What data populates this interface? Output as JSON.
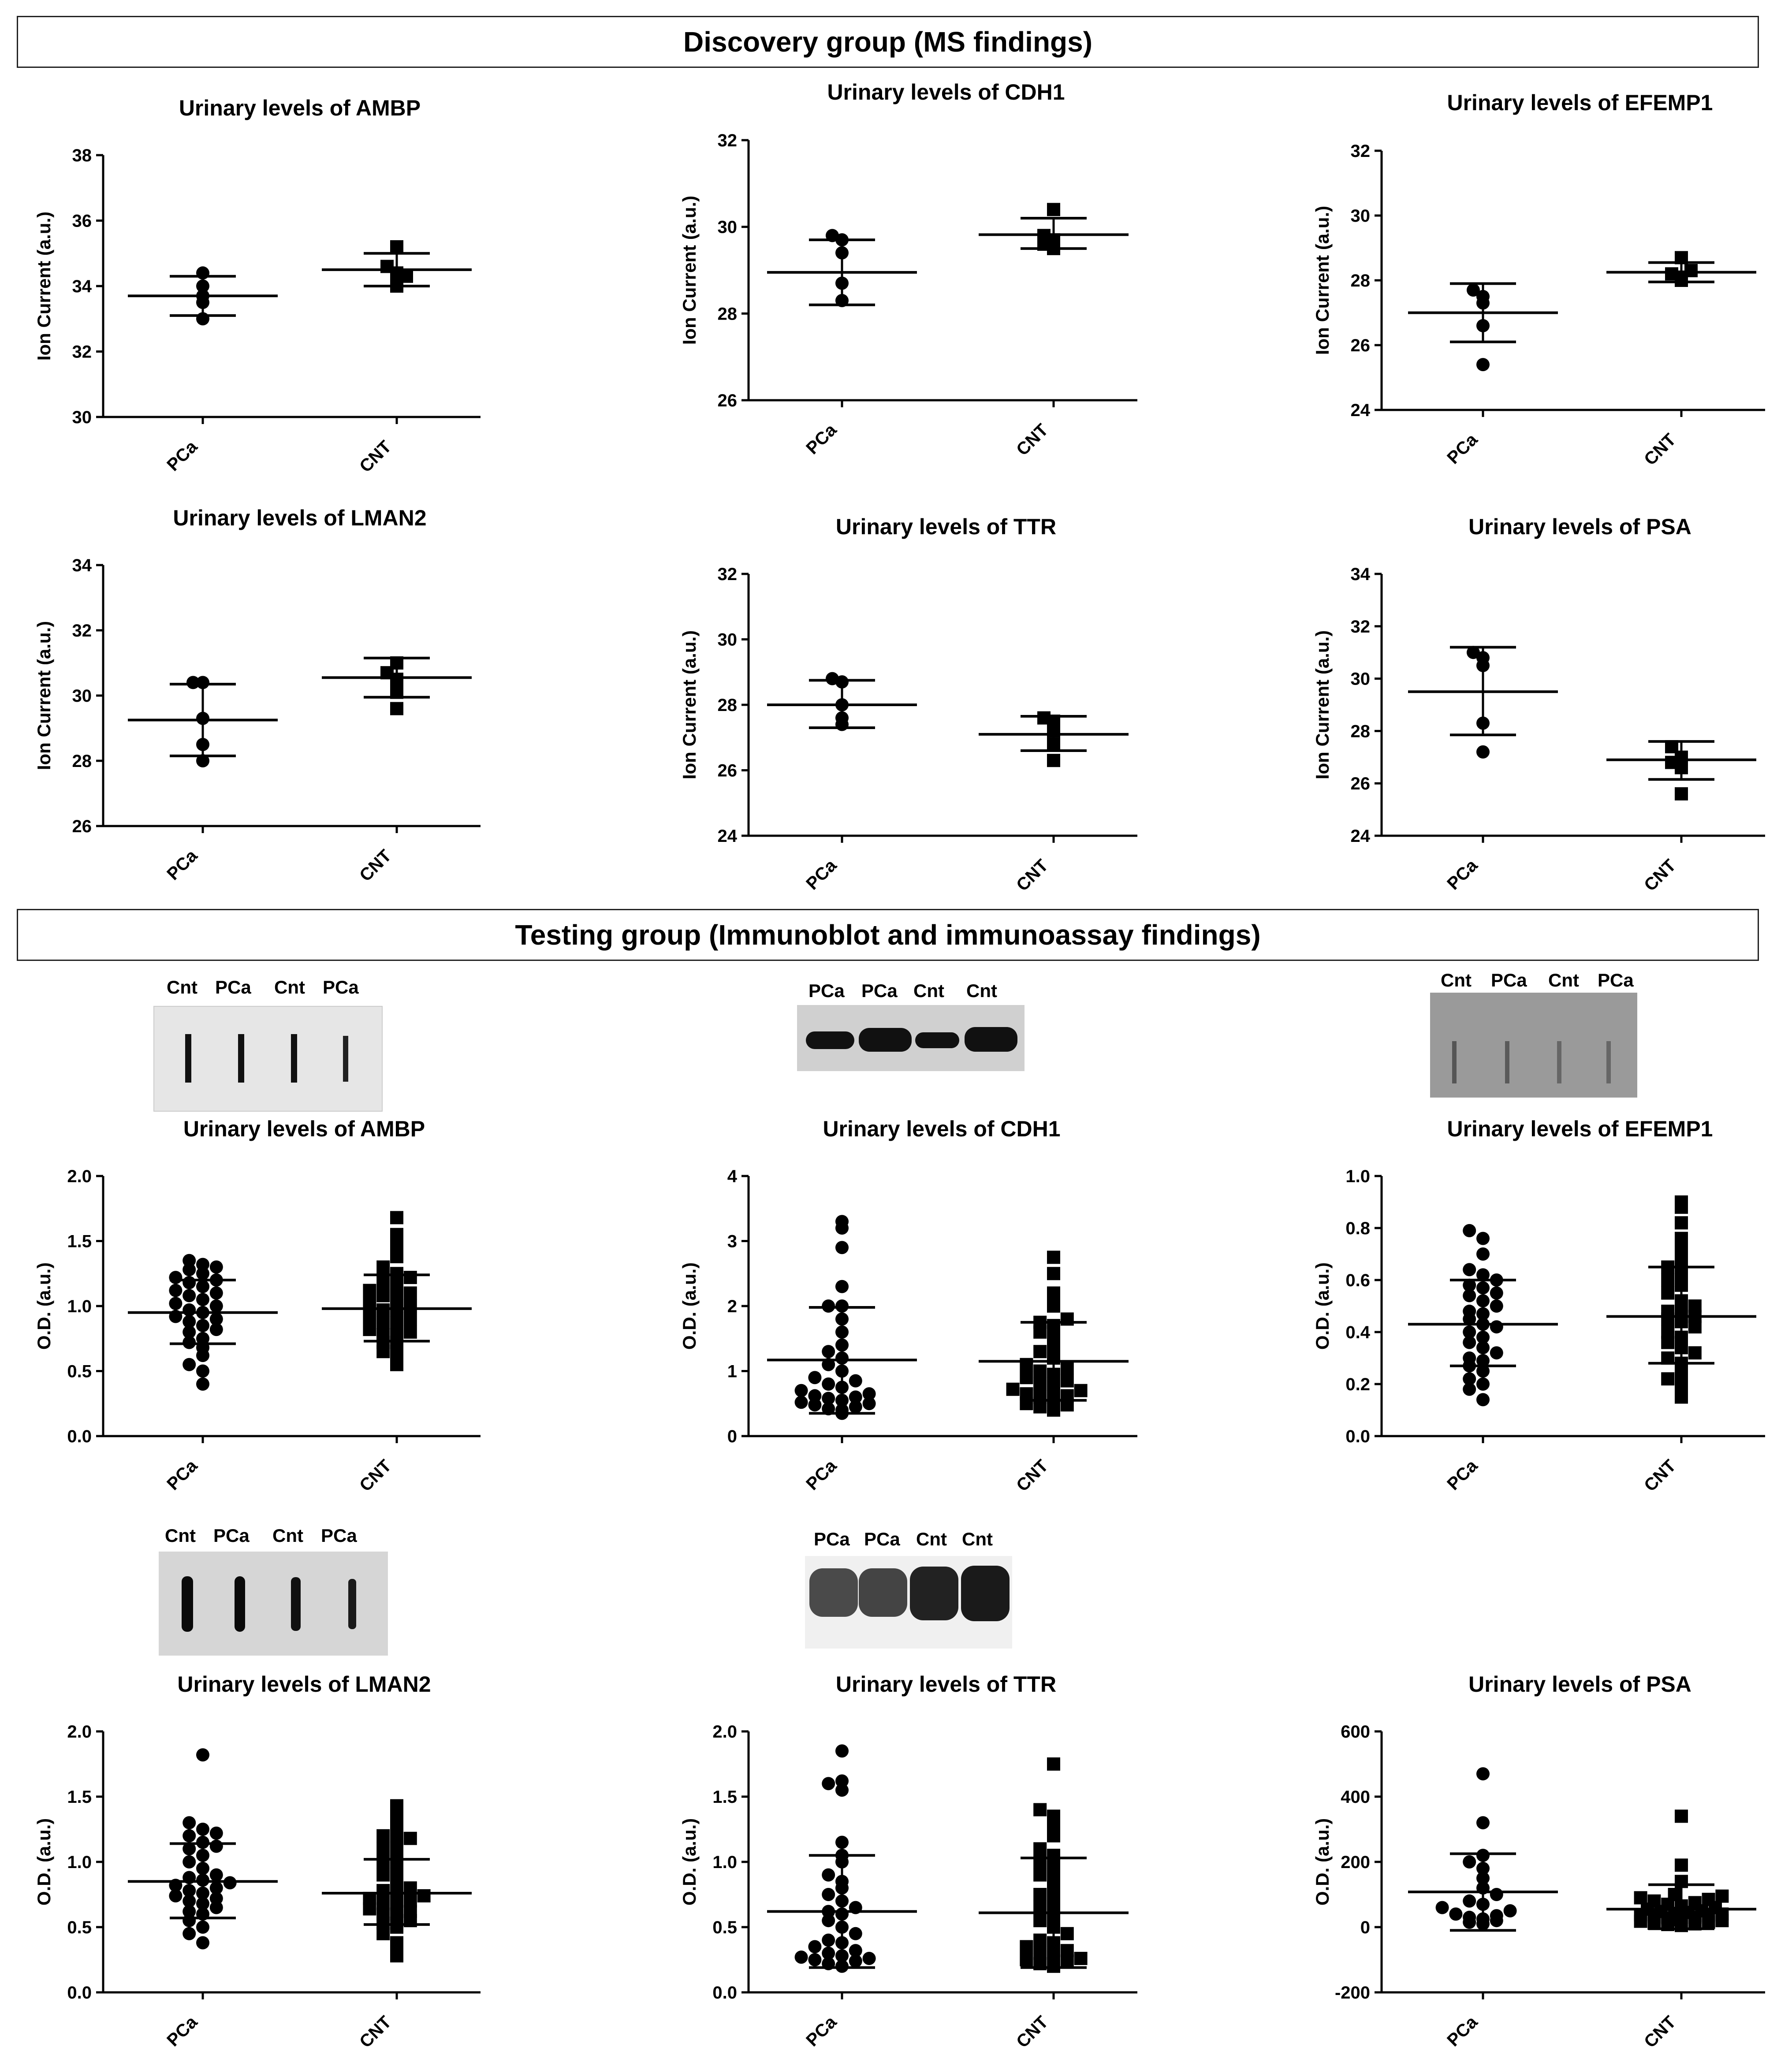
{
  "sections": {
    "discovery": "Discovery group (MS findings)",
    "testing": "Testing group (Immunoblot and immunoassay findings)"
  },
  "blots": {
    "ambp": [
      "Cnt",
      "PCa",
      "Cnt",
      "PCa"
    ],
    "cdh1": [
      "PCa",
      "PCa",
      "Cnt",
      "Cnt"
    ],
    "efemp1": [
      "Cnt",
      "PCa",
      "Cnt",
      "PCa"
    ],
    "lman2": [
      "Cnt",
      "PCa",
      "Cnt",
      "PCa"
    ],
    "ttr": [
      "PCa",
      "PCa",
      "Cnt",
      "Cnt"
    ]
  },
  "colors": {
    "ink": "#000000",
    "frame": "#222222"
  },
  "chart_data": [
    {
      "id": "ms_ambp",
      "type": "scatter",
      "title": "Urinary levels of AMBP",
      "ylabel": "Ion Current (a.u.)",
      "categories": [
        "PCa",
        "CNT"
      ],
      "ylim": [
        30,
        38
      ],
      "yticks": [
        "30",
        "32",
        "34",
        "36",
        "38"
      ],
      "series": [
        {
          "name": "PCa",
          "marker": "circle",
          "mean": 33.7,
          "sd_low": 33.1,
          "sd_high": 34.3,
          "values": [
            33.0,
            33.5,
            34.0,
            33.7,
            34.4
          ]
        },
        {
          "name": "CNT",
          "marker": "square",
          "mean": 34.5,
          "sd_low": 34.0,
          "sd_high": 35.0,
          "values": [
            34.0,
            34.4,
            34.6,
            34.3,
            35.2
          ]
        }
      ]
    },
    {
      "id": "ms_cdh1",
      "type": "scatter",
      "title": "Urinary levels of CDH1",
      "ylabel": "Ion Current (a.u.)",
      "categories": [
        "PCa",
        "CNT"
      ],
      "ylim": [
        26,
        32
      ],
      "yticks": [
        "26",
        "28",
        "30",
        "32"
      ],
      "series": [
        {
          "name": "PCa",
          "marker": "circle",
          "mean": 28.95,
          "sd_low": 28.2,
          "sd_high": 29.7,
          "values": [
            28.3,
            28.7,
            29.4,
            29.7,
            29.8
          ]
        },
        {
          "name": "CNT",
          "marker": "square",
          "mean": 29.82,
          "sd_low": 29.5,
          "sd_high": 30.2,
          "values": [
            29.5,
            29.6,
            29.7,
            29.8,
            30.4
          ]
        }
      ]
    },
    {
      "id": "ms_efemp1",
      "type": "scatter",
      "title": "Urinary levels of EFEMP1",
      "ylabel": "Ion Current (a.u.)",
      "categories": [
        "PCa",
        "CNT"
      ],
      "ylim": [
        24,
        32
      ],
      "yticks": [
        "24",
        "26",
        "28",
        "30",
        "32"
      ],
      "series": [
        {
          "name": "PCa",
          "marker": "circle",
          "mean": 27.0,
          "sd_low": 26.1,
          "sd_high": 27.9,
          "values": [
            25.4,
            26.6,
            27.3,
            27.5,
            27.7
          ]
        },
        {
          "name": "CNT",
          "marker": "square",
          "mean": 28.25,
          "sd_low": 27.95,
          "sd_high": 28.55,
          "values": [
            28.0,
            28.1,
            28.2,
            28.3,
            28.7
          ]
        }
      ]
    },
    {
      "id": "ms_lman2",
      "type": "scatter",
      "title": "Urinary levels of LMAN2",
      "ylabel": "Ion Current (a.u.)",
      "categories": [
        "PCa",
        "CNT"
      ],
      "ylim": [
        26,
        34
      ],
      "yticks": [
        "26",
        "28",
        "30",
        "32",
        "34"
      ],
      "series": [
        {
          "name": "PCa",
          "marker": "circle",
          "mean": 29.25,
          "sd_low": 28.15,
          "sd_high": 30.35,
          "values": [
            28.0,
            28.5,
            29.3,
            30.4,
            30.4
          ]
        },
        {
          "name": "CNT",
          "marker": "square",
          "mean": 30.55,
          "sd_low": 29.95,
          "sd_high": 31.15,
          "values": [
            29.6,
            30.1,
            30.5,
            30.7,
            31.0
          ]
        }
      ]
    },
    {
      "id": "ms_ttr",
      "type": "scatter",
      "title": "Urinary levels of TTR",
      "ylabel": "Ion Current (a.u.)",
      "categories": [
        "PCa",
        "CNT"
      ],
      "ylim": [
        24,
        32
      ],
      "yticks": [
        "24",
        "26",
        "28",
        "30",
        "32"
      ],
      "series": [
        {
          "name": "PCa",
          "marker": "circle",
          "mean": 28.0,
          "sd_low": 27.3,
          "sd_high": 28.75,
          "values": [
            27.4,
            27.6,
            28.0,
            28.7,
            28.8
          ]
        },
        {
          "name": "CNT",
          "marker": "square",
          "mean": 27.1,
          "sd_low": 26.6,
          "sd_high": 27.65,
          "values": [
            26.3,
            26.8,
            27.2,
            27.5,
            27.6
          ]
        }
      ]
    },
    {
      "id": "ms_psa",
      "type": "scatter",
      "title": "Urinary levels of PSA",
      "ylabel": "Ion Current (a.u.)",
      "categories": [
        "PCa",
        "CNT"
      ],
      "ylim": [
        24,
        34
      ],
      "yticks": [
        "24",
        "26",
        "28",
        "30",
        "32",
        "34"
      ],
      "series": [
        {
          "name": "PCa",
          "marker": "circle",
          "mean": 29.5,
          "sd_low": 27.85,
          "sd_high": 31.2,
          "values": [
            27.2,
            28.3,
            30.5,
            30.8,
            31.0
          ]
        },
        {
          "name": "CNT",
          "marker": "square",
          "mean": 26.9,
          "sd_low": 26.15,
          "sd_high": 27.6,
          "values": [
            25.6,
            26.6,
            26.8,
            27.0,
            27.4
          ]
        }
      ]
    },
    {
      "id": "ib_ambp",
      "type": "scatter",
      "title": "Urinary levels of AMBP",
      "ylabel": "O.D. (a.u.)",
      "categories": [
        "PCa",
        "CNT"
      ],
      "ylim": [
        0,
        2
      ],
      "yticks": [
        "0.0",
        "0.5",
        "1.0",
        "1.5",
        "2.0"
      ],
      "series": [
        {
          "name": "PCa",
          "marker": "circle",
          "mean": 0.95,
          "sd_low": 0.71,
          "sd_high": 1.2,
          "values": [
            0.4,
            0.5,
            0.55,
            0.62,
            0.68,
            0.72,
            0.75,
            0.8,
            0.82,
            0.85,
            0.88,
            0.9,
            0.92,
            0.95,
            0.97,
            1.0,
            1.02,
            1.05,
            1.08,
            1.1,
            1.12,
            1.15,
            1.18,
            1.2,
            1.22,
            1.25,
            1.28,
            1.3,
            1.32,
            1.35
          ]
        },
        {
          "name": "CNT",
          "marker": "square",
          "mean": 0.98,
          "sd_low": 0.73,
          "sd_high": 1.24,
          "values": [
            0.55,
            0.6,
            0.65,
            0.7,
            0.72,
            0.75,
            0.78,
            0.8,
            0.82,
            0.85,
            0.87,
            0.9,
            0.92,
            0.95,
            0.97,
            1.0,
            1.02,
            1.05,
            1.08,
            1.1,
            1.12,
            1.15,
            1.18,
            1.22,
            1.25,
            1.3,
            1.38,
            1.45,
            1.55,
            1.68
          ]
        }
      ]
    },
    {
      "id": "ib_cdh1",
      "type": "scatter",
      "title": "Urinary levels of CDH1",
      "ylabel": "O.D. (a.u.)",
      "categories": [
        "PCa",
        "CNT"
      ],
      "ylim": [
        0,
        4
      ],
      "yticks": [
        "0",
        "1",
        "2",
        "3",
        "4"
      ],
      "series": [
        {
          "name": "PCa",
          "marker": "circle",
          "mean": 1.17,
          "sd_low": 0.35,
          "sd_high": 1.98,
          "values": [
            0.35,
            0.4,
            0.42,
            0.45,
            0.48,
            0.5,
            0.52,
            0.55,
            0.58,
            0.6,
            0.62,
            0.65,
            0.7,
            0.75,
            0.8,
            0.85,
            0.9,
            1.0,
            1.1,
            1.2,
            1.3,
            1.4,
            1.6,
            1.8,
            2.0,
            2.0,
            2.3,
            2.9,
            3.2,
            3.3
          ]
        },
        {
          "name": "CNT",
          "marker": "square",
          "mean": 1.15,
          "sd_low": 0.55,
          "sd_high": 1.75,
          "values": [
            0.4,
            0.45,
            0.48,
            0.5,
            0.55,
            0.6,
            0.62,
            0.65,
            0.7,
            0.72,
            0.75,
            0.8,
            0.85,
            0.9,
            0.95,
            1.0,
            1.05,
            1.1,
            1.2,
            1.3,
            1.4,
            1.5,
            1.6,
            1.7,
            1.75,
            1.8,
            2.0,
            2.2,
            2.5,
            2.75
          ]
        }
      ]
    },
    {
      "id": "ib_efemp1",
      "type": "scatter",
      "title": "Urinary levels of EFEMP1",
      "ylabel": "O.D. (a.u.)",
      "categories": [
        "PCa",
        "CNT"
      ],
      "ylim": [
        0,
        1
      ],
      "yticks": [
        "0.0",
        "0.2",
        "0.4",
        "0.6",
        "0.8",
        "1.0"
      ],
      "series": [
        {
          "name": "PCa",
          "marker": "circle",
          "mean": 0.43,
          "sd_low": 0.27,
          "sd_high": 0.6,
          "values": [
            0.14,
            0.18,
            0.2,
            0.22,
            0.25,
            0.27,
            0.29,
            0.3,
            0.32,
            0.34,
            0.36,
            0.38,
            0.4,
            0.42,
            0.43,
            0.45,
            0.47,
            0.48,
            0.5,
            0.52,
            0.54,
            0.55,
            0.57,
            0.58,
            0.6,
            0.62,
            0.64,
            0.7,
            0.76,
            0.79
          ]
        },
        {
          "name": "CNT",
          "marker": "square",
          "mean": 0.46,
          "sd_low": 0.28,
          "sd_high": 0.65,
          "values": [
            0.15,
            0.2,
            0.22,
            0.25,
            0.28,
            0.3,
            0.32,
            0.34,
            0.36,
            0.38,
            0.4,
            0.42,
            0.44,
            0.45,
            0.46,
            0.47,
            0.48,
            0.5,
            0.52,
            0.55,
            0.58,
            0.6,
            0.62,
            0.65,
            0.68,
            0.72,
            0.76,
            0.82,
            0.88,
            0.9
          ]
        }
      ]
    },
    {
      "id": "ib_lman2",
      "type": "scatter",
      "title": "Urinary levels of LMAN2",
      "ylabel": "O.D. (a.u.)",
      "categories": [
        "PCa",
        "CNT"
      ],
      "ylim": [
        0,
        2
      ],
      "yticks": [
        "0.0",
        "0.5",
        "1.0",
        "1.5",
        "2.0"
      ],
      "series": [
        {
          "name": "PCa",
          "marker": "circle",
          "mean": 0.85,
          "sd_low": 0.57,
          "sd_high": 1.14,
          "values": [
            0.38,
            0.45,
            0.5,
            0.55,
            0.6,
            0.62,
            0.65,
            0.68,
            0.7,
            0.72,
            0.74,
            0.76,
            0.78,
            0.8,
            0.82,
            0.84,
            0.86,
            0.88,
            0.9,
            0.95,
            1.0,
            1.05,
            1.1,
            1.12,
            1.15,
            1.2,
            1.22,
            1.25,
            1.3,
            1.82
          ]
        },
        {
          "name": "CNT",
          "marker": "square",
          "mean": 0.76,
          "sd_low": 0.52,
          "sd_high": 1.02,
          "values": [
            0.28,
            0.38,
            0.45,
            0.5,
            0.53,
            0.55,
            0.58,
            0.6,
            0.62,
            0.64,
            0.66,
            0.68,
            0.7,
            0.72,
            0.74,
            0.76,
            0.78,
            0.8,
            0.85,
            0.9,
            0.95,
            1.0,
            1.05,
            1.1,
            1.15,
            1.2,
            1.25,
            1.35,
            1.43,
            1.18
          ]
        }
      ]
    },
    {
      "id": "ib_ttr",
      "type": "scatter",
      "title": "Urinary levels of TTR",
      "ylabel": "O.D. (a.u.)",
      "categories": [
        "PCa",
        "CNT"
      ],
      "ylim": [
        0,
        2
      ],
      "yticks": [
        "0.0",
        "0.5",
        "1.0",
        "1.5",
        "2.0"
      ],
      "series": [
        {
          "name": "PCa",
          "marker": "circle",
          "mean": 0.62,
          "sd_low": 0.19,
          "sd_high": 1.05,
          "values": [
            0.2,
            0.22,
            0.24,
            0.25,
            0.26,
            0.27,
            0.28,
            0.3,
            0.32,
            0.35,
            0.38,
            0.4,
            0.45,
            0.5,
            0.55,
            0.6,
            0.62,
            0.65,
            0.7,
            0.75,
            0.8,
            0.85,
            0.9,
            1.0,
            1.05,
            1.15,
            1.55,
            1.6,
            1.62,
            1.85
          ]
        },
        {
          "name": "CNT",
          "marker": "square",
          "mean": 0.61,
          "sd_low": 0.19,
          "sd_high": 1.03,
          "values": [
            0.2,
            0.22,
            0.24,
            0.25,
            0.26,
            0.28,
            0.3,
            0.32,
            0.35,
            0.38,
            0.4,
            0.45,
            0.5,
            0.55,
            0.6,
            0.65,
            0.7,
            0.75,
            0.8,
            0.85,
            0.9,
            0.95,
            1.0,
            1.05,
            1.1,
            1.2,
            1.3,
            1.35,
            1.4,
            1.75
          ]
        }
      ]
    },
    {
      "id": "ib_psa",
      "type": "scatter",
      "title": "Urinary levels of PSA",
      "ylabel": "O.D. (a.u.)",
      "categories": [
        "PCa",
        "CNT"
      ],
      "ylim": [
        -200,
        600
      ],
      "yticks": [
        "-200",
        "0",
        "200",
        "400",
        "600"
      ],
      "series": [
        {
          "name": "PCa",
          "marker": "circle",
          "mean": 108,
          "sd_low": -10,
          "sd_high": 225,
          "values": [
            10,
            15,
            20,
            25,
            30,
            35,
            40,
            50,
            60,
            70,
            80,
            100,
            120,
            150,
            180,
            200,
            220,
            320,
            470
          ]
        },
        {
          "name": "CNT",
          "marker": "square",
          "mean": 55,
          "sd_low": -5,
          "sd_high": 130,
          "values": [
            5,
            8,
            10,
            12,
            15,
            18,
            20,
            22,
            25,
            28,
            30,
            32,
            35,
            38,
            40,
            42,
            45,
            48,
            50,
            55,
            60,
            65,
            70,
            75,
            80,
            85,
            90,
            95,
            100,
            140,
            190,
            340
          ]
        }
      ]
    }
  ]
}
